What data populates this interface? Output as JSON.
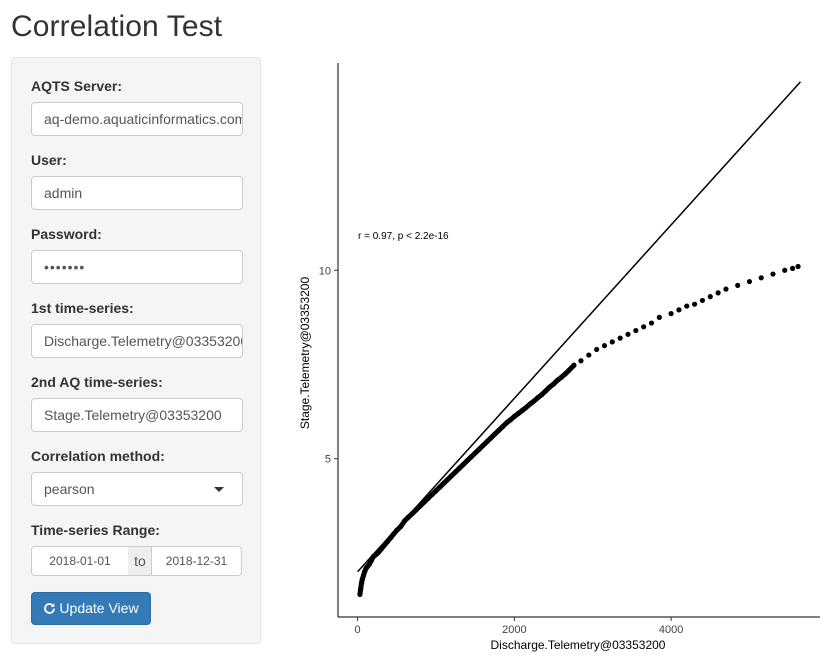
{
  "page": {
    "title": "Correlation Test"
  },
  "form": {
    "server_label": "AQTS Server:",
    "server_value": "aq-demo.aquaticinformatics.com",
    "user_label": "User:",
    "user_value": "admin",
    "password_label": "Password:",
    "password_value": "•••••••",
    "ts1_label": "1st time-series:",
    "ts1_value": "Discharge.Telemetry@03353200",
    "ts2_label": "2nd AQ time-series:",
    "ts2_value": "Stage.Telemetry@03353200",
    "method_label": "Correlation method:",
    "method_value": "pearson",
    "range_label": "Time-series Range:",
    "range_start": "2018-01-01",
    "range_sep": "to",
    "range_end": "2018-12-31",
    "update_label": "Update View",
    "update_icon": "refresh-icon"
  },
  "chart_data": {
    "type": "scatter",
    "xlabel": "Discharge.Telemetry@03353200",
    "ylabel": "Stage.Telemetry@03353200",
    "annotation": "r = 0.97, p < 2.2e-16",
    "xlim": [
      -250,
      5900
    ],
    "ylim": [
      0.8,
      15.5
    ],
    "xticks": [
      0,
      2000,
      4000
    ],
    "yticks": [
      5,
      10
    ],
    "points": [
      [
        30,
        1.4
      ],
      [
        40,
        1.55
      ],
      [
        50,
        1.7
      ],
      [
        60,
        1.8
      ],
      [
        75,
        1.9
      ],
      [
        90,
        2.0
      ],
      [
        110,
        2.1
      ],
      [
        130,
        2.15
      ],
      [
        150,
        2.2
      ],
      [
        175,
        2.3
      ],
      [
        200,
        2.4
      ],
      [
        230,
        2.45
      ],
      [
        260,
        2.5
      ],
      [
        300,
        2.6
      ],
      [
        340,
        2.7
      ],
      [
        380,
        2.8
      ],
      [
        420,
        2.9
      ],
      [
        460,
        3.0
      ],
      [
        500,
        3.1
      ],
      [
        550,
        3.2
      ],
      [
        600,
        3.35
      ],
      [
        650,
        3.45
      ],
      [
        700,
        3.55
      ],
      [
        750,
        3.65
      ],
      [
        800,
        3.75
      ],
      [
        850,
        3.85
      ],
      [
        900,
        3.95
      ],
      [
        950,
        4.05
      ],
      [
        1000,
        4.15
      ],
      [
        1050,
        4.25
      ],
      [
        1100,
        4.35
      ],
      [
        1150,
        4.45
      ],
      [
        1200,
        4.55
      ],
      [
        1250,
        4.65
      ],
      [
        1300,
        4.75
      ],
      [
        1350,
        4.85
      ],
      [
        1400,
        4.95
      ],
      [
        1450,
        5.05
      ],
      [
        1500,
        5.15
      ],
      [
        1550,
        5.25
      ],
      [
        1600,
        5.35
      ],
      [
        1650,
        5.45
      ],
      [
        1700,
        5.55
      ],
      [
        1750,
        5.65
      ],
      [
        1800,
        5.75
      ],
      [
        1850,
        5.85
      ],
      [
        1900,
        5.95
      ],
      [
        1950,
        6.03
      ],
      [
        2000,
        6.12
      ],
      [
        2050,
        6.2
      ],
      [
        2100,
        6.28
      ],
      [
        2150,
        6.36
      ],
      [
        2200,
        6.45
      ],
      [
        2250,
        6.53
      ],
      [
        2300,
        6.62
      ],
      [
        2350,
        6.7
      ],
      [
        2400,
        6.8
      ],
      [
        2450,
        6.9
      ],
      [
        2500,
        6.98
      ],
      [
        2550,
        7.08
      ],
      [
        2600,
        7.16
      ],
      [
        2650,
        7.25
      ],
      [
        2700,
        7.35
      ],
      [
        2760,
        7.48
      ],
      [
        2850,
        7.6
      ],
      [
        2950,
        7.75
      ],
      [
        3050,
        7.9
      ],
      [
        3150,
        8.0
      ],
      [
        3250,
        8.1
      ],
      [
        3350,
        8.2
      ],
      [
        3450,
        8.3
      ],
      [
        3550,
        8.4
      ],
      [
        3650,
        8.5
      ],
      [
        3750,
        8.6
      ],
      [
        3850,
        8.75
      ],
      [
        4000,
        8.85
      ],
      [
        4100,
        8.95
      ],
      [
        4200,
        9.05
      ],
      [
        4300,
        9.1
      ],
      [
        4400,
        9.2
      ],
      [
        4500,
        9.3
      ],
      [
        4600,
        9.4
      ],
      [
        4700,
        9.5
      ],
      [
        4850,
        9.6
      ],
      [
        5000,
        9.7
      ],
      [
        5150,
        9.8
      ],
      [
        5300,
        9.9
      ],
      [
        5450,
        10.0
      ],
      [
        5550,
        10.05
      ],
      [
        5620,
        10.1
      ]
    ],
    "fit_line": [
      [
        0,
        2.0
      ],
      [
        5650,
        15.0
      ]
    ]
  }
}
